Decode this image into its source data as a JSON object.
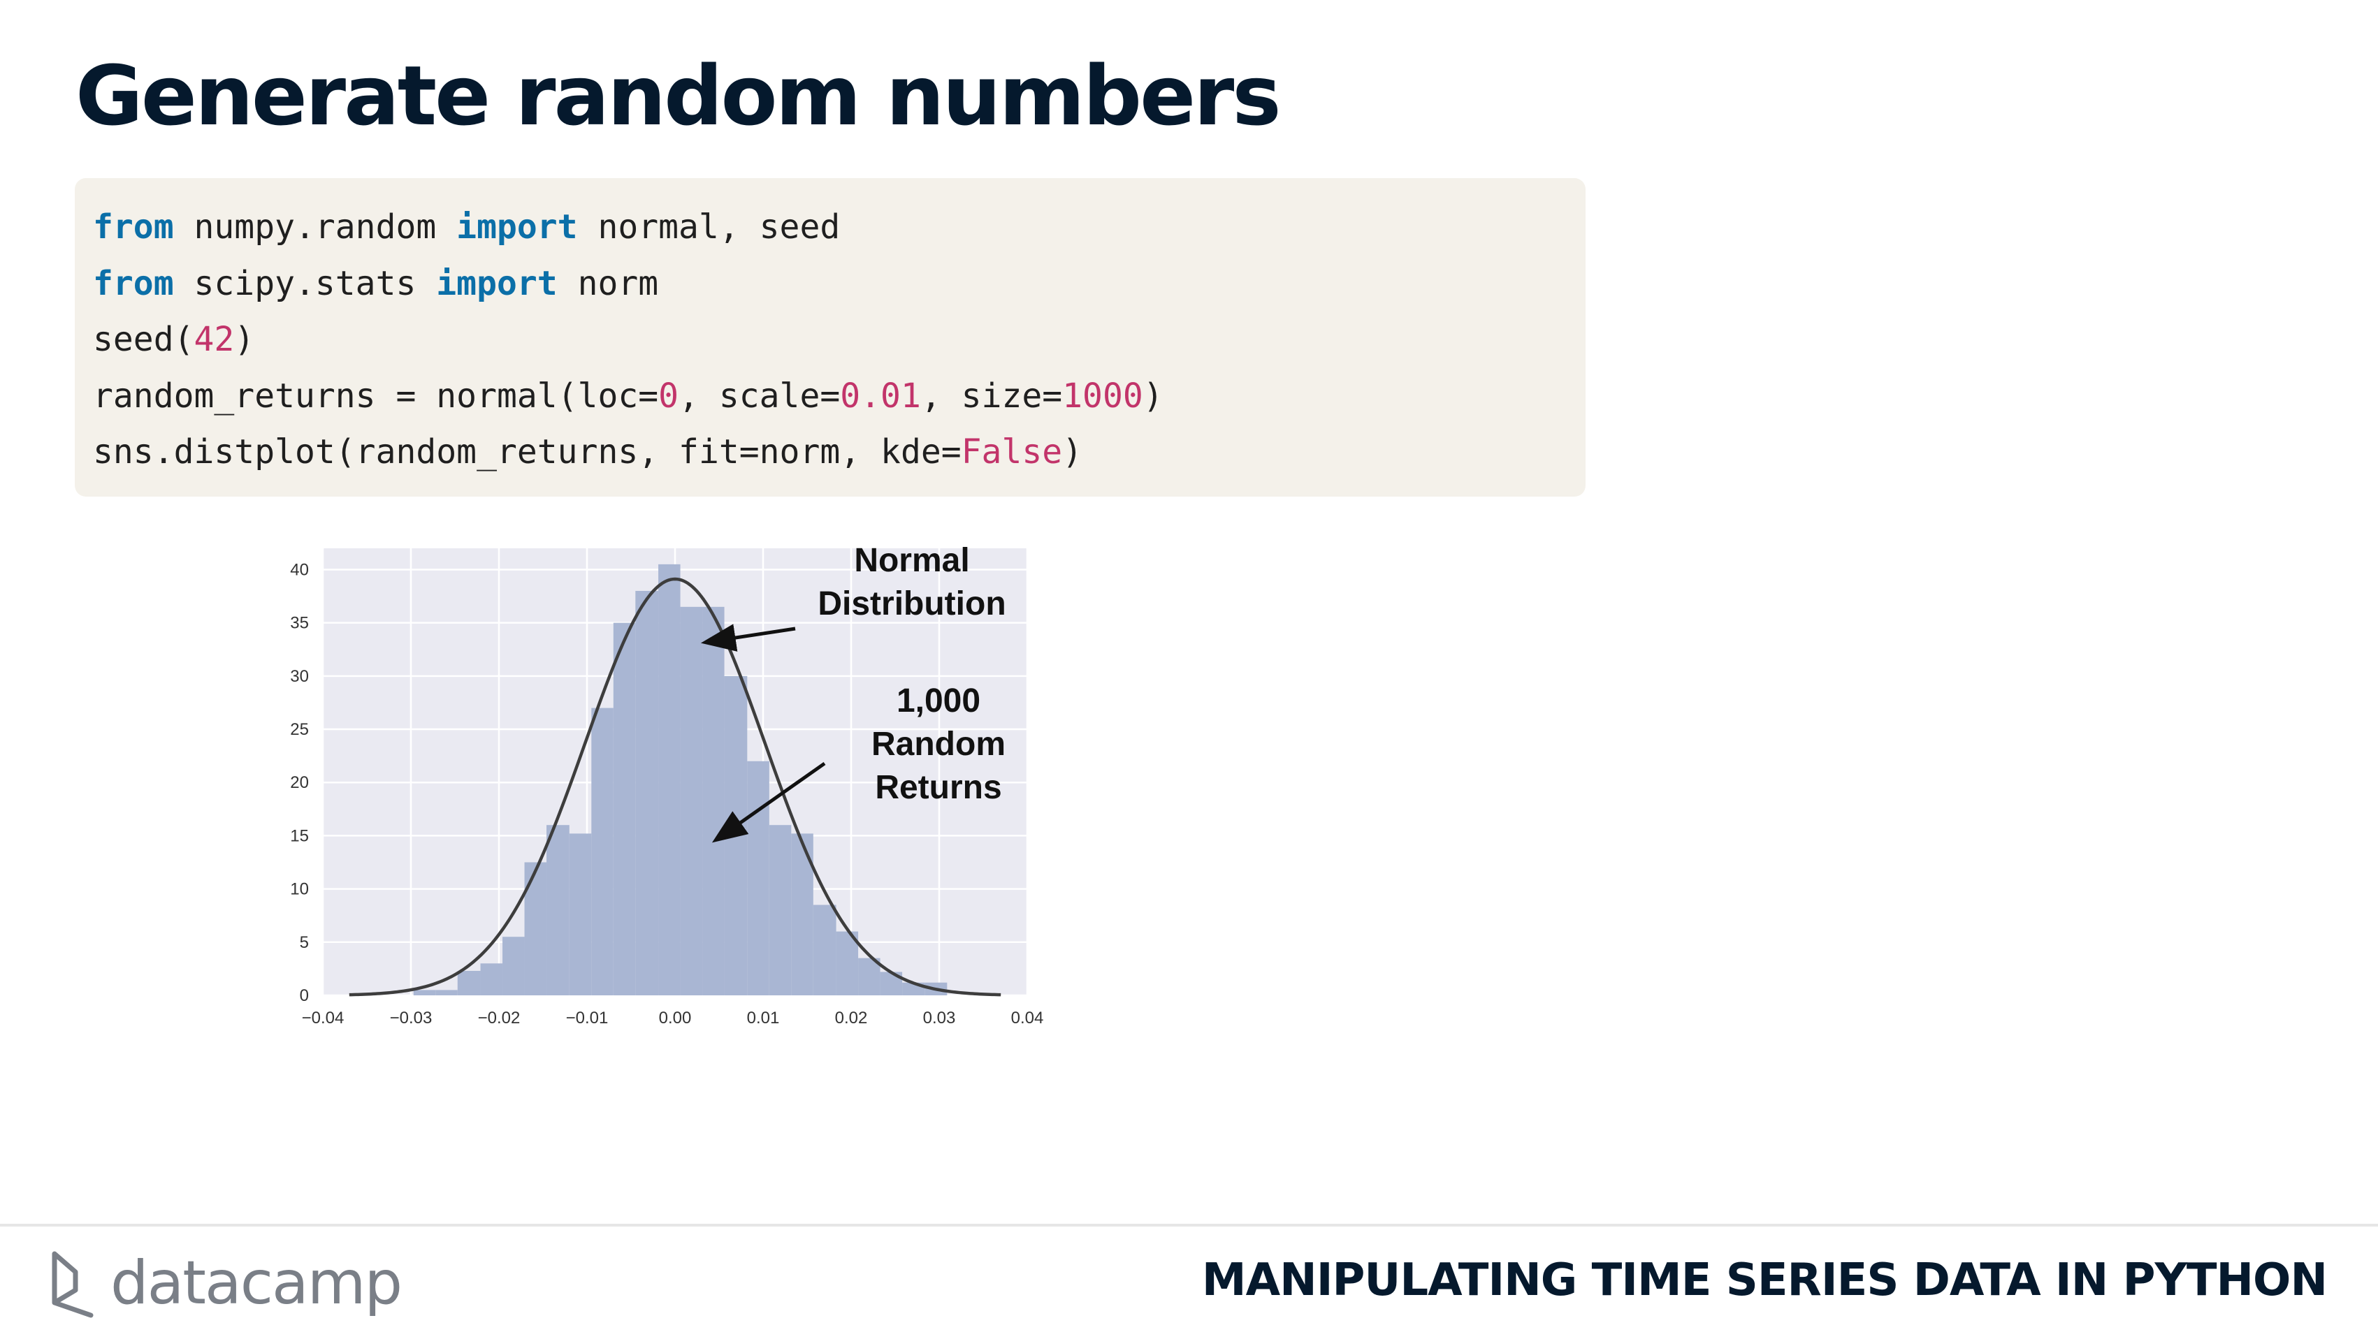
{
  "slide": {
    "title": "Generate random numbers"
  },
  "code": {
    "lines": [
      [
        {
          "t": "from",
          "c": "kw"
        },
        {
          "t": " numpy.random ",
          "c": ""
        },
        {
          "t": "import",
          "c": "kw"
        },
        {
          "t": " normal, seed",
          "c": ""
        }
      ],
      [
        {
          "t": "from",
          "c": "kw"
        },
        {
          "t": " scipy.stats ",
          "c": ""
        },
        {
          "t": "import",
          "c": "kw"
        },
        {
          "t": " norm",
          "c": ""
        }
      ],
      [
        {
          "t": "seed(",
          "c": ""
        },
        {
          "t": "42",
          "c": "num"
        },
        {
          "t": ")",
          "c": ""
        }
      ],
      [
        {
          "t": "random_returns = normal(loc=",
          "c": ""
        },
        {
          "t": "0",
          "c": "num"
        },
        {
          "t": ", scale=",
          "c": ""
        },
        {
          "t": "0.01",
          "c": "num"
        },
        {
          "t": ", size=",
          "c": ""
        },
        {
          "t": "1000",
          "c": "num"
        },
        {
          "t": ")",
          "c": ""
        }
      ],
      [
        {
          "t": "sns.distplot(random_returns, fit=norm, kde=",
          "c": ""
        },
        {
          "t": "False",
          "c": "num"
        },
        {
          "t": ")",
          "c": ""
        }
      ]
    ]
  },
  "chart_data": {
    "type": "bar",
    "bins": [
      {
        "x0": -0.0297,
        "x1": -0.0272,
        "y": 0.5
      },
      {
        "x0": -0.0272,
        "x1": -0.0247,
        "y": 0.5
      },
      {
        "x0": -0.0247,
        "x1": -0.0221,
        "y": 2.3
      },
      {
        "x0": -0.0221,
        "x1": -0.0196,
        "y": 3.0
      },
      {
        "x0": -0.0196,
        "x1": -0.0171,
        "y": 5.5
      },
      {
        "x0": -0.0171,
        "x1": -0.0146,
        "y": 12.5
      },
      {
        "x0": -0.0146,
        "x1": -0.012,
        "y": 16.0
      },
      {
        "x0": -0.012,
        "x1": -0.0095,
        "y": 15.2
      },
      {
        "x0": -0.0095,
        "x1": -0.007,
        "y": 27.0
      },
      {
        "x0": -0.007,
        "x1": -0.0045,
        "y": 35.0
      },
      {
        "x0": -0.0045,
        "x1": -0.0019,
        "y": 38.0
      },
      {
        "x0": -0.0019,
        "x1": 0.0006,
        "y": 40.5
      },
      {
        "x0": 0.0006,
        "x1": 0.0031,
        "y": 36.5
      },
      {
        "x0": 0.0031,
        "x1": 0.0056,
        "y": 36.5
      },
      {
        "x0": 0.0056,
        "x1": 0.0082,
        "y": 30.0
      },
      {
        "x0": 0.0082,
        "x1": 0.0107,
        "y": 22.0
      },
      {
        "x0": 0.0107,
        "x1": 0.0132,
        "y": 16.0
      },
      {
        "x0": 0.0132,
        "x1": 0.0157,
        "y": 15.2
      },
      {
        "x0": 0.0157,
        "x1": 0.0183,
        "y": 8.5
      },
      {
        "x0": 0.0183,
        "x1": 0.0208,
        "y": 6.0
      },
      {
        "x0": 0.0208,
        "x1": 0.0233,
        "y": 3.5
      },
      {
        "x0": 0.0233,
        "x1": 0.0258,
        "y": 2.2
      },
      {
        "x0": 0.0258,
        "x1": 0.0284,
        "y": 1.2
      },
      {
        "x0": 0.0284,
        "x1": 0.0309,
        "y": 1.2
      }
    ],
    "fit": {
      "type": "normal",
      "mean": 0.0,
      "std": 0.0102
    },
    "xlim": [
      -0.04,
      0.04
    ],
    "ylim": [
      0,
      42
    ],
    "xticks": [
      "−0.04",
      "−0.03",
      "−0.02",
      "−0.01",
      "0.00",
      "0.01",
      "0.02",
      "0.03",
      "0.04"
    ],
    "xtick_values": [
      -0.04,
      -0.03,
      -0.02,
      -0.01,
      0.0,
      0.01,
      0.02,
      0.03,
      0.04
    ],
    "yticks": [
      0,
      5,
      10,
      15,
      20,
      25,
      30,
      35,
      40
    ],
    "grid": true,
    "annotations": [
      {
        "lines": [
          "Normal",
          "Distribution"
        ],
        "arrow_to": [
          0.0045,
          33.3
        ]
      },
      {
        "lines": [
          "1,000",
          "Random",
          "Returns"
        ],
        "arrow_to": [
          0.0055,
          15.1
        ]
      }
    ],
    "colors": {
      "bars": "#a9b6d3",
      "fit_line": "#3d3d3d",
      "plot_bg": "#eaeaf2",
      "grid": "#ffffff"
    }
  },
  "footer": {
    "logo_text": "datacamp",
    "course_title": "MANIPULATING TIME SERIES DATA IN PYTHON"
  }
}
